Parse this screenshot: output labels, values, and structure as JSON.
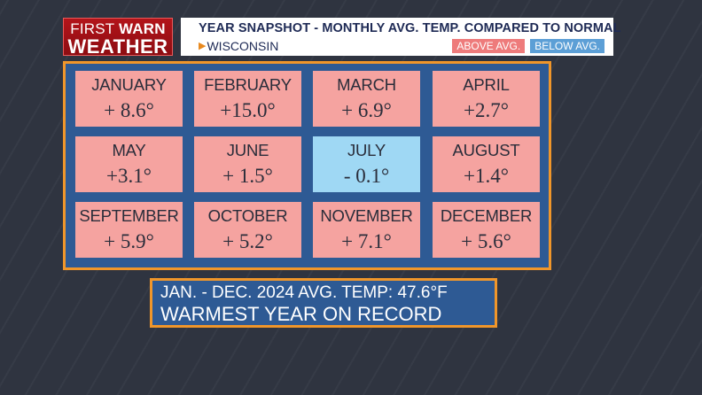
{
  "logo": {
    "line1_a": "FIRST",
    "line1_b": "WARN",
    "line2": "WEATHER"
  },
  "header": {
    "title": "YEAR SNAPSHOT - MONTHLY AVG. TEMP. COMPARED TO NORMAL",
    "location": "WISCONSIN",
    "location_marker": "play-triangle-icon",
    "legend": {
      "above": "ABOVE AVG.",
      "below": "BELOW AVG."
    }
  },
  "colors": {
    "above": "#f5a3a0",
    "below": "#9fd8f4",
    "panel": "#2e5a94",
    "border": "#f0962a",
    "logo": "#b3141a"
  },
  "months": [
    {
      "name": "JANUARY",
      "value": "+ 8.6°",
      "status": "above"
    },
    {
      "name": "FEBRUARY",
      "value": "+15.0°",
      "status": "above"
    },
    {
      "name": "MARCH",
      "value": "+ 6.9°",
      "status": "above"
    },
    {
      "name": "APRIL",
      "value": "+2.7°",
      "status": "above"
    },
    {
      "name": "MAY",
      "value": "+3.1°",
      "status": "above"
    },
    {
      "name": "JUNE",
      "value": "+ 1.5°",
      "status": "above"
    },
    {
      "name": "JULY",
      "value": "- 0.1°",
      "status": "below"
    },
    {
      "name": "AUGUST",
      "value": "+1.4°",
      "status": "above"
    },
    {
      "name": "SEPTEMBER",
      "value": "+ 5.9°",
      "status": "above"
    },
    {
      "name": "OCTOBER",
      "value": "+ 5.2°",
      "status": "above"
    },
    {
      "name": "NOVEMBER",
      "value": "+ 7.1°",
      "status": "above"
    },
    {
      "name": "DECEMBER",
      "value": "+ 5.6°",
      "status": "above"
    }
  ],
  "summary": {
    "line1": "JAN. - DEC. 2024 AVG. TEMP: 47.6°F",
    "line2": "WARMEST YEAR ON RECORD"
  }
}
